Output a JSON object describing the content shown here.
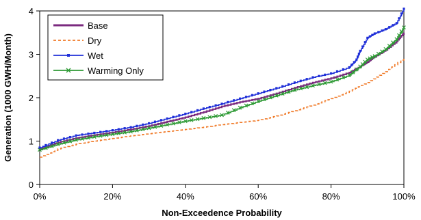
{
  "chart_data": {
    "type": "line",
    "xlabel": "Non-Exceedence Probability",
    "ylabel": "Generation (1000 GWH/Month)",
    "xlim": [
      0,
      100
    ],
    "ylim": [
      0,
      4
    ],
    "x_ticks": [
      0,
      20,
      40,
      60,
      80,
      100
    ],
    "x_tick_labels": [
      "0%",
      "20%",
      "40%",
      "60%",
      "80%",
      "100%"
    ],
    "y_ticks": [
      0,
      1,
      2,
      3,
      4
    ],
    "y_tick_labels": [
      "0",
      "1",
      "2",
      "3",
      "4"
    ],
    "grid": false,
    "legend_position": "top-left",
    "series": [
      {
        "name": "Base",
        "color": "#7b2a7f",
        "style": "solid",
        "marker": "none",
        "x": [
          0,
          5,
          10,
          15,
          20,
          25,
          30,
          35,
          40,
          45,
          50,
          55,
          60,
          65,
          70,
          75,
          80,
          85,
          88,
          90,
          92,
          95,
          98,
          100
        ],
        "y": [
          0.82,
          0.97,
          1.07,
          1.14,
          1.2,
          1.27,
          1.35,
          1.45,
          1.55,
          1.67,
          1.8,
          1.9,
          1.98,
          2.1,
          2.23,
          2.35,
          2.45,
          2.58,
          2.72,
          2.82,
          2.95,
          3.1,
          3.3,
          3.5
        ]
      },
      {
        "name": "Dry",
        "color": "#f07a28",
        "style": "dashed",
        "marker": "none",
        "x": [
          0,
          5,
          10,
          15,
          20,
          25,
          30,
          35,
          40,
          45,
          50,
          55,
          60,
          65,
          70,
          75,
          80,
          85,
          90,
          95,
          100
        ],
        "y": [
          0.63,
          0.82,
          0.93,
          1.0,
          1.06,
          1.12,
          1.17,
          1.22,
          1.27,
          1.32,
          1.38,
          1.43,
          1.48,
          1.58,
          1.7,
          1.83,
          1.98,
          2.15,
          2.35,
          2.6,
          2.92
        ]
      },
      {
        "name": "Wet",
        "color": "#1f2fd8",
        "style": "solid",
        "marker": "square",
        "x": [
          0,
          5,
          10,
          15,
          20,
          25,
          30,
          35,
          40,
          45,
          50,
          55,
          60,
          65,
          70,
          75,
          80,
          85,
          87,
          88,
          90,
          92,
          95,
          98,
          100
        ],
        "y": [
          0.85,
          1.02,
          1.13,
          1.19,
          1.25,
          1.32,
          1.41,
          1.52,
          1.63,
          1.75,
          1.86,
          1.98,
          2.1,
          2.22,
          2.35,
          2.47,
          2.56,
          2.7,
          2.88,
          3.08,
          3.38,
          3.48,
          3.58,
          3.72,
          4.05
        ]
      },
      {
        "name": "Warming Only",
        "color": "#2e9a35",
        "style": "solid",
        "marker": "x",
        "x": [
          0,
          5,
          10,
          15,
          20,
          25,
          30,
          35,
          40,
          45,
          50,
          55,
          60,
          65,
          70,
          75,
          80,
          85,
          88,
          90,
          92,
          95,
          98,
          100
        ],
        "y": [
          0.8,
          0.93,
          1.03,
          1.1,
          1.16,
          1.22,
          1.3,
          1.38,
          1.46,
          1.53,
          1.6,
          1.77,
          1.92,
          2.05,
          2.18,
          2.28,
          2.37,
          2.52,
          2.72,
          2.88,
          2.96,
          3.12,
          3.35,
          3.62
        ]
      }
    ]
  }
}
